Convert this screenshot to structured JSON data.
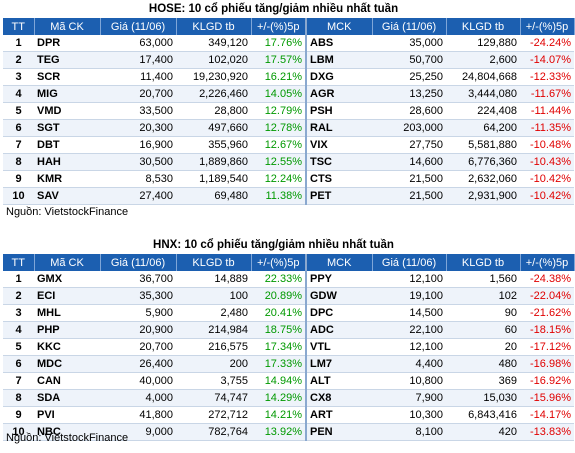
{
  "hose": {
    "title": "HOSE: 10 cổ phiếu tăng/giảm nhiều nhất tuần",
    "headers": [
      "TT",
      "Mã CK",
      "Giá (11/06)",
      "KLGD tb",
      "+/-(%)5p",
      "MCK",
      "Giá (11/06)",
      "KLGD tb",
      "+/-(%)5p"
    ],
    "rows": [
      {
        "tt": "1",
        "up_code": "DPR",
        "up_price": "63,000",
        "up_vol": "349,120",
        "up_pct": "17.76%",
        "down_code": "ABS",
        "down_price": "35,000",
        "down_vol": "129,880",
        "down_pct": "-24.24%"
      },
      {
        "tt": "2",
        "up_code": "TEG",
        "up_price": "17,400",
        "up_vol": "102,020",
        "up_pct": "17.57%",
        "down_code": "LBM",
        "down_price": "50,700",
        "down_vol": "2,600",
        "down_pct": "-14.07%"
      },
      {
        "tt": "3",
        "up_code": "SCR",
        "up_price": "11,400",
        "up_vol": "19,230,920",
        "up_pct": "16.21%",
        "down_code": "DXG",
        "down_price": "25,250",
        "down_vol": "24,804,668",
        "down_pct": "-12.33%"
      },
      {
        "tt": "4",
        "up_code": "MIG",
        "up_price": "20,700",
        "up_vol": "2,226,460",
        "up_pct": "14.05%",
        "down_code": "AGR",
        "down_price": "13,250",
        "down_vol": "3,444,080",
        "down_pct": "-11.67%"
      },
      {
        "tt": "5",
        "up_code": "VMD",
        "up_price": "33,500",
        "up_vol": "28,800",
        "up_pct": "12.79%",
        "down_code": "PSH",
        "down_price": "28,600",
        "down_vol": "224,408",
        "down_pct": "-11.44%"
      },
      {
        "tt": "6",
        "up_code": "SGT",
        "up_price": "20,300",
        "up_vol": "497,660",
        "up_pct": "12.78%",
        "down_code": "RAL",
        "down_price": "203,000",
        "down_vol": "64,200",
        "down_pct": "-11.35%"
      },
      {
        "tt": "7",
        "up_code": "DBT",
        "up_price": "16,900",
        "up_vol": "355,960",
        "up_pct": "12.67%",
        "down_code": "VIX",
        "down_price": "27,750",
        "down_vol": "5,581,880",
        "down_pct": "-10.48%"
      },
      {
        "tt": "8",
        "up_code": "HAH",
        "up_price": "30,500",
        "up_vol": "1,889,860",
        "up_pct": "12.55%",
        "down_code": "TSC",
        "down_price": "14,600",
        "down_vol": "6,776,360",
        "down_pct": "-10.43%"
      },
      {
        "tt": "9",
        "up_code": "KMR",
        "up_price": "8,530",
        "up_vol": "1,189,540",
        "up_pct": "12.24%",
        "down_code": "CTS",
        "down_price": "21,500",
        "down_vol": "2,632,060",
        "down_pct": "-10.42%"
      },
      {
        "tt": "10",
        "up_code": "SAV",
        "up_price": "27,400",
        "up_vol": "69,480",
        "up_pct": "11.38%",
        "down_code": "PET",
        "down_price": "21,500",
        "down_vol": "2,931,900",
        "down_pct": "-10.42%"
      }
    ],
    "source": "Nguồn: VietstockFinance"
  },
  "hnx": {
    "title": "HNX: 10 cổ phiếu tăng/giảm nhiều nhất tuần",
    "headers": [
      "TT",
      "Mã CK",
      "Giá (11/06)",
      "KLGD tb",
      "+/-(%)5p",
      "MCK",
      "Giá (11/06)",
      "KLGD tb",
      "+/-(%)5p"
    ],
    "rows": [
      {
        "tt": "1",
        "up_code": "GMX",
        "up_price": "36,700",
        "up_vol": "14,889",
        "up_pct": "22.33%",
        "down_code": "PPY",
        "down_price": "12,100",
        "down_vol": "1,560",
        "down_pct": "-24.38%"
      },
      {
        "tt": "2",
        "up_code": "ECI",
        "up_price": "35,300",
        "up_vol": "100",
        "up_pct": "20.89%",
        "down_code": "GDW",
        "down_price": "19,100",
        "down_vol": "102",
        "down_pct": "-22.04%"
      },
      {
        "tt": "3",
        "up_code": "MHL",
        "up_price": "5,900",
        "up_vol": "2,480",
        "up_pct": "20.41%",
        "down_code": "DPC",
        "down_price": "14,500",
        "down_vol": "90",
        "down_pct": "-21.62%"
      },
      {
        "tt": "4",
        "up_code": "PHP",
        "up_price": "20,900",
        "up_vol": "214,984",
        "up_pct": "18.75%",
        "down_code": "ADC",
        "down_price": "22,100",
        "down_vol": "60",
        "down_pct": "-18.15%"
      },
      {
        "tt": "5",
        "up_code": "KKC",
        "up_price": "20,700",
        "up_vol": "216,575",
        "up_pct": "17.34%",
        "down_code": "VTL",
        "down_price": "12,100",
        "down_vol": "20",
        "down_pct": "-17.12%"
      },
      {
        "tt": "6",
        "up_code": "MDC",
        "up_price": "26,400",
        "up_vol": "200",
        "up_pct": "17.33%",
        "down_code": "LM7",
        "down_price": "4,400",
        "down_vol": "480",
        "down_pct": "-16.98%"
      },
      {
        "tt": "7",
        "up_code": "CAN",
        "up_price": "40,000",
        "up_vol": "3,755",
        "up_pct": "14.94%",
        "down_code": "ALT",
        "down_price": "10,800",
        "down_vol": "369",
        "down_pct": "-16.92%"
      },
      {
        "tt": "8",
        "up_code": "SDA",
        "up_price": "4,000",
        "up_vol": "74,747",
        "up_pct": "14.29%",
        "down_code": "CX8",
        "down_price": "7,900",
        "down_vol": "15,030",
        "down_pct": "-15.96%"
      },
      {
        "tt": "9",
        "up_code": "PVI",
        "up_price": "41,800",
        "up_vol": "272,712",
        "up_pct": "14.21%",
        "down_code": "ART",
        "down_price": "10,300",
        "down_vol": "6,843,416",
        "down_pct": "-14.17%"
      },
      {
        "tt": "10",
        "up_code": "NBC",
        "up_price": "9,000",
        "up_vol": "782,764",
        "up_pct": "13.92%",
        "down_code": "PEN",
        "down_price": "8,100",
        "down_vol": "420",
        "down_pct": "-13.83%"
      }
    ],
    "source": "Nguồn: VietstockFinance"
  },
  "colors": {
    "header_bg": "#1c5fb0",
    "up": "#009900",
    "down": "#e00000"
  }
}
